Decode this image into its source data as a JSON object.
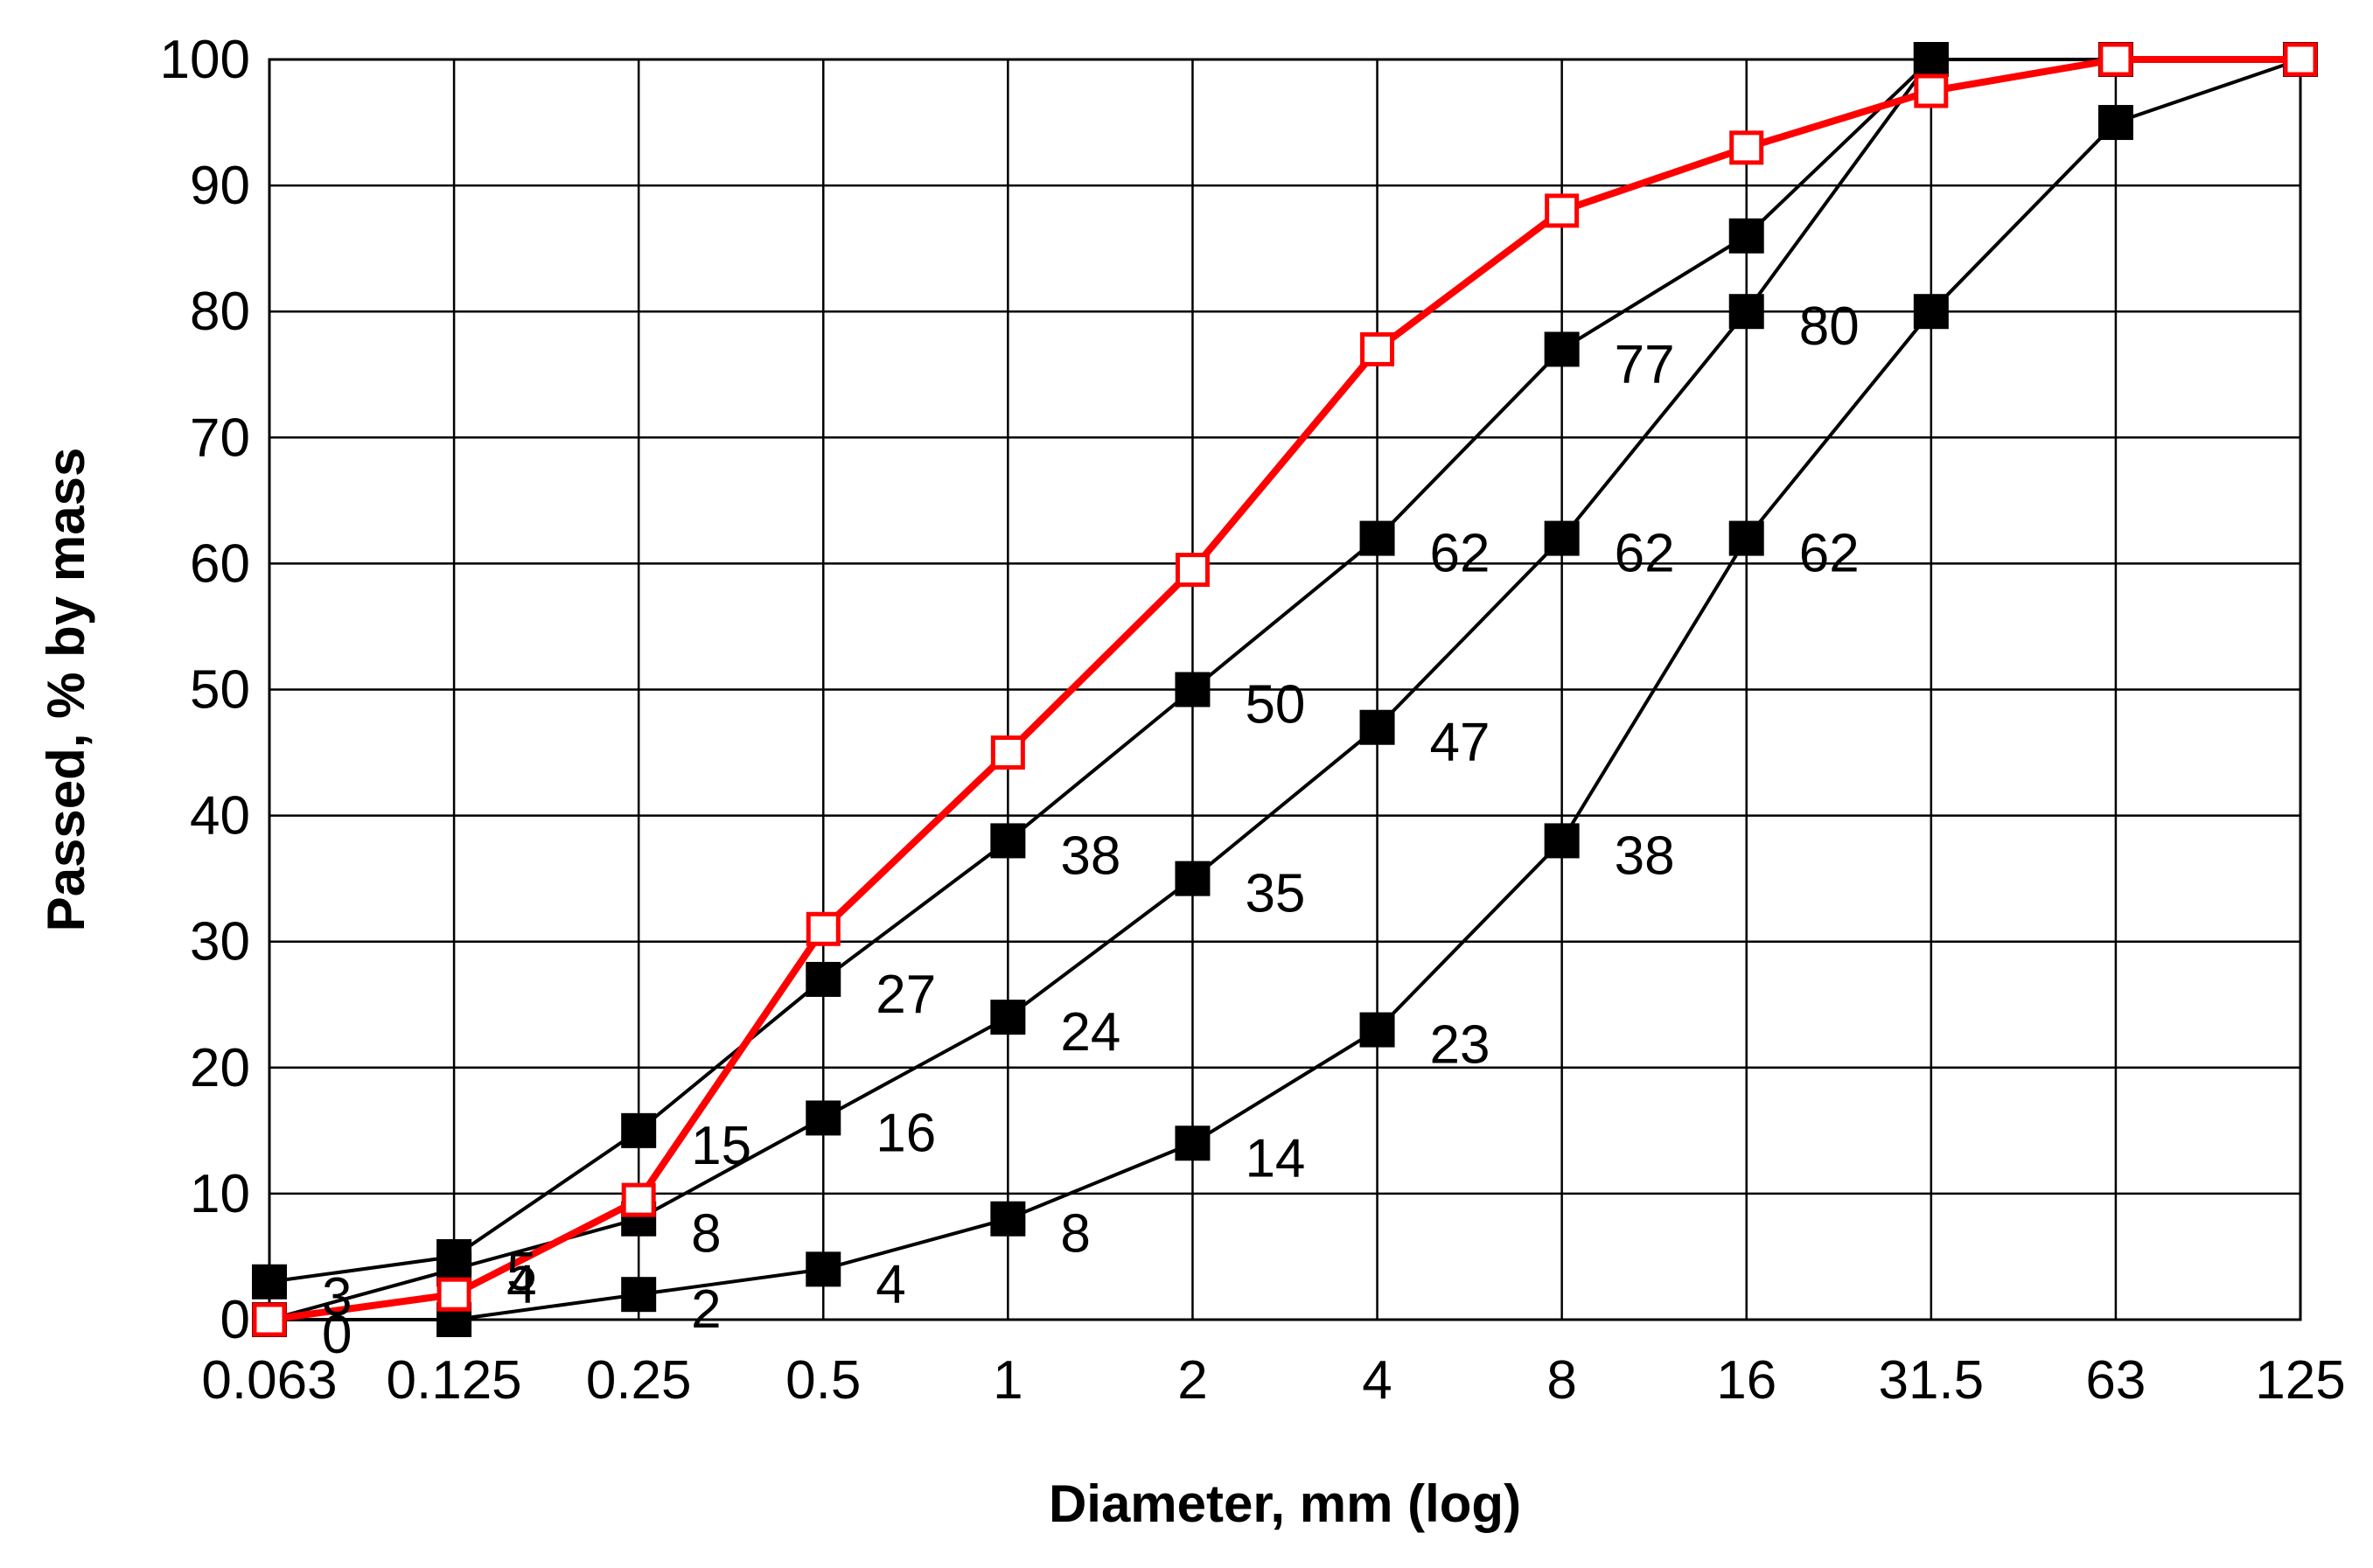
{
  "chart_data": {
    "type": "line",
    "title": "",
    "xlabel": "Diameter, mm (log)",
    "ylabel": "Passed, % by mass",
    "x_scale": "log",
    "x": [
      0.063,
      0.125,
      0.25,
      0.5,
      1,
      2,
      4,
      8,
      16,
      31.5,
      63,
      125
    ],
    "x_tick_labels": [
      "0.063",
      "0.125",
      "0.25",
      "0.5",
      "1",
      "2",
      "4",
      "8",
      "16",
      "31.5",
      "63",
      "125"
    ],
    "y_ticks": [
      0,
      10,
      20,
      30,
      40,
      50,
      60,
      70,
      80,
      90,
      100
    ],
    "ylim": [
      0,
      100
    ],
    "grid": true,
    "legend": "none",
    "colors": {
      "black_series": "#000000",
      "red_series": "#ff0000",
      "grid": "#000000"
    },
    "series": [
      {
        "color": "#000000",
        "marker": "filled-square",
        "values": [
          3,
          5,
          15,
          27,
          38,
          50,
          62,
          77,
          86,
          100,
          100,
          100
        ],
        "labels": [
          "3",
          "5",
          "15",
          "27",
          "38",
          "50",
          "62",
          "77",
          "",
          "",
          "",
          ""
        ]
      },
      {
        "color": "#000000",
        "marker": "filled-square",
        "values": [
          0,
          4,
          8,
          16,
          24,
          35,
          47,
          62,
          80,
          100,
          100,
          100
        ],
        "labels": [
          "0",
          "4",
          "8",
          "16",
          "24",
          "35",
          "47",
          "62",
          "80",
          "",
          "",
          ""
        ]
      },
      {
        "color": "#000000",
        "marker": "filled-square",
        "values": [
          0,
          0,
          2,
          4,
          8,
          14,
          23,
          38,
          62,
          80,
          95,
          100
        ],
        "labels": [
          "",
          "",
          "2",
          "4",
          "8",
          "14",
          "23",
          "38",
          "62",
          "",
          "",
          ""
        ]
      },
      {
        "color": "#ff0000",
        "marker": "hollow-square",
        "values": [
          0,
          2,
          9.5,
          31,
          45,
          59.5,
          77,
          88,
          93,
          97.5,
          100,
          100
        ],
        "labels": [
          "",
          "",
          "",
          "",
          "",
          "",
          "",
          "",
          "",
          "",
          "",
          ""
        ]
      }
    ]
  }
}
